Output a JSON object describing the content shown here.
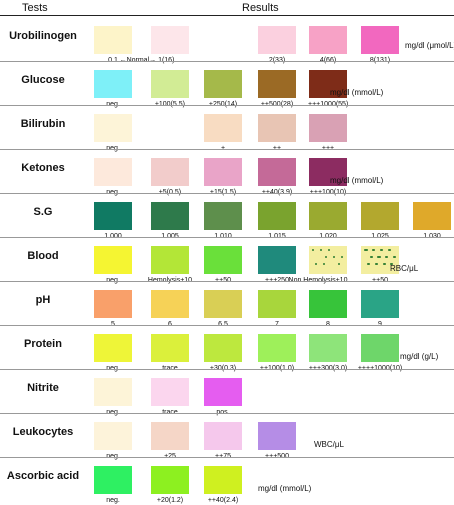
{
  "header": {
    "tests_label": "Tests",
    "results_label": "Results"
  },
  "rows": [
    {
      "name": "Urobilinogen",
      "unit": "mg/dl (μmol/L)",
      "cells": [
        {
          "col": 0,
          "color": "#fdf4c9",
          "label": "0.1"
        },
        {
          "col": 1,
          "color": "#fde6ea",
          "label": "←Normal→ 1(16)"
        },
        {
          "col": 3,
          "color": "#fbd0df",
          "label": "2(33)"
        },
        {
          "col": 4,
          "color": "#f7a2c6",
          "label": "4(66)"
        },
        {
          "col": 5,
          "color": "#f268bf",
          "label": "8(131)"
        }
      ]
    },
    {
      "name": "Glucose",
      "unit": "mg/dl (mmol/L)",
      "cells": [
        {
          "col": 0,
          "color": "#7ef0f8",
          "label": "neg."
        },
        {
          "col": 1,
          "color": "#d2ec95",
          "label": "±100(5.5)"
        },
        {
          "col": 2,
          "color": "#a5b94a",
          "label": "+250(14)"
        },
        {
          "col": 3,
          "color": "#9b6a25",
          "label": "++500(28)"
        },
        {
          "col": 4,
          "color": "#7e2c18",
          "label": "+++1000(55)"
        }
      ]
    },
    {
      "name": "Bilirubin",
      "unit": "",
      "cells": [
        {
          "col": 0,
          "color": "#fdf4d8",
          "label": "neg."
        },
        {
          "col": 2,
          "color": "#f8dcc2",
          "label": "+"
        },
        {
          "col": 3,
          "color": "#e8c5b4",
          "label": "++"
        },
        {
          "col": 4,
          "color": "#d9a1b4",
          "label": "+++"
        }
      ]
    },
    {
      "name": "Ketones",
      "unit": "mg/dl (mmol/L)",
      "cells": [
        {
          "col": 0,
          "color": "#fde9dc",
          "label": "neg."
        },
        {
          "col": 1,
          "color": "#f2cccb",
          "label": "±5(0.5)"
        },
        {
          "col": 2,
          "color": "#e9a4c8",
          "label": "+15(1.5)"
        },
        {
          "col": 3,
          "color": "#c46a98",
          "label": "++40(3.9)"
        },
        {
          "col": 4,
          "color": "#8c2c61",
          "label": "+++100(10)"
        }
      ]
    },
    {
      "name": "S.G",
      "unit": "",
      "cells": [
        {
          "col": 0,
          "color": "#107a63",
          "label": "1.000"
        },
        {
          "col": 1,
          "color": "#2e7a4b",
          "label": "1.005"
        },
        {
          "col": 2,
          "color": "#5e8f4c",
          "label": "1.010"
        },
        {
          "col": 3,
          "color": "#7aa32e",
          "label": "1.015"
        },
        {
          "col": 4,
          "color": "#9aaa30",
          "label": "1.020"
        },
        {
          "col": 5,
          "color": "#b3a82e",
          "label": "1.025"
        },
        {
          "col": 6,
          "color": "#dfa92a",
          "label": "1.030"
        }
      ]
    },
    {
      "name": "Blood",
      "unit": "RBC/μL",
      "cells": [
        {
          "col": 0,
          "color": "#f5f532",
          "label": "neg."
        },
        {
          "col": 1,
          "color": "#b3e637",
          "label": "Hemolysis+10"
        },
        {
          "col": 2,
          "color": "#6ae03a",
          "label": "++50"
        },
        {
          "col": 3,
          "color": "#1f8a7c",
          "label": "+++250"
        },
        {
          "col": 4,
          "color": "#f3eea0",
          "label": "Non Hemolysis+10",
          "dots": "sparse"
        },
        {
          "col": 5,
          "color": "#f3eea0",
          "label": "++50",
          "dots": "dense"
        }
      ]
    },
    {
      "name": "pH",
      "unit": "",
      "cells": [
        {
          "col": 0,
          "color": "#f9a06a",
          "label": "5"
        },
        {
          "col": 1,
          "color": "#f6d257",
          "label": "6"
        },
        {
          "col": 2,
          "color": "#d9cf55",
          "label": "6.5"
        },
        {
          "col": 3,
          "color": "#a8d63c",
          "label": "7"
        },
        {
          "col": 4,
          "color": "#37c43a",
          "label": "8"
        },
        {
          "col": 5,
          "color": "#2aa486",
          "label": "9"
        }
      ]
    },
    {
      "name": "Protein",
      "unit": "mg/dl (g/L)",
      "cells": [
        {
          "col": 0,
          "color": "#eef538",
          "label": "neg."
        },
        {
          "col": 1,
          "color": "#dbf03b",
          "label": "trace"
        },
        {
          "col": 2,
          "color": "#bde83e",
          "label": "+30(0.3)"
        },
        {
          "col": 3,
          "color": "#9ef05a",
          "label": "++100(1.0)"
        },
        {
          "col": 4,
          "color": "#8ee47a",
          "label": "+++300(3.0)"
        },
        {
          "col": 5,
          "color": "#6ed66a",
          "label": "++++1000(10)"
        }
      ]
    },
    {
      "name": "Nitrite",
      "unit": "",
      "cells": [
        {
          "col": 0,
          "color": "#fdf4d8",
          "label": "neg."
        },
        {
          "col": 1,
          "color": "#fbd6ee",
          "label": "trace"
        },
        {
          "col": 2,
          "color": "#e55df0",
          "label": "pos."
        }
      ]
    },
    {
      "name": "Leukocytes",
      "unit": "WBC/μL",
      "cells": [
        {
          "col": 0,
          "color": "#fdf3da",
          "label": "neg."
        },
        {
          "col": 1,
          "color": "#f5d6c7",
          "label": "+25"
        },
        {
          "col": 2,
          "color": "#f5c8ec",
          "label": "++75"
        },
        {
          "col": 3,
          "color": "#b58de6",
          "label": "+++500"
        }
      ]
    },
    {
      "name": "Ascorbic acid",
      "unit": "mg/dl (mmol/L)",
      "cells": [
        {
          "col": 0,
          "color": "#2ef062",
          "label": "neg."
        },
        {
          "col": 1,
          "color": "#8df020",
          "label": "+20(1.2)"
        },
        {
          "col": 2,
          "color": "#cff020",
          "label": "++40(2.4)"
        }
      ]
    }
  ]
}
